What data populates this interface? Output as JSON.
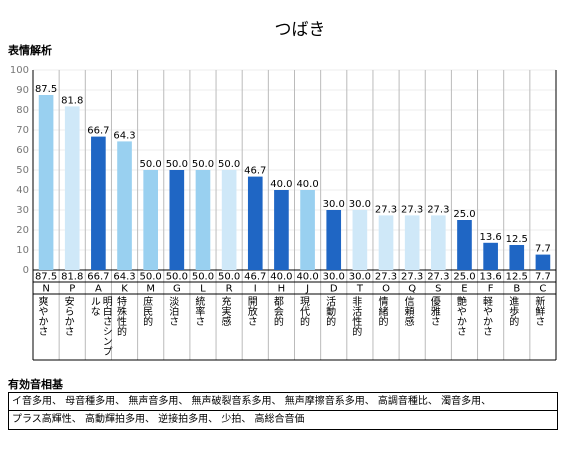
{
  "chart_data": {
    "type": "bar",
    "title": "つばき",
    "subtitle": "表情解析",
    "categories": [
      "N",
      "P",
      "A",
      "K",
      "M",
      "G",
      "L",
      "R",
      "I",
      "H",
      "J",
      "D",
      "T",
      "O",
      "Q",
      "S",
      "E",
      "F",
      "B",
      "C"
    ],
    "descriptions": [
      "爽やかさ",
      "安らかさ",
      "明白さシンプルな",
      "特殊性的",
      "庶民的",
      "淡泊さ",
      "統率さ",
      "充実感",
      "開放さ",
      "都会的",
      "現代的",
      "活動的",
      "非活性的",
      "情緒的",
      "信頼感",
      "優雅さ",
      "艶やかさ",
      "軽やかさ",
      "進歩的",
      "新鮮さ"
    ],
    "values": [
      87.5,
      81.8,
      66.7,
      64.3,
      50,
      50,
      50,
      50,
      46.7,
      40,
      40,
      30,
      30,
      27.3,
      27.3,
      27.3,
      25,
      13.6,
      12.5,
      7.7
    ],
    "value_labels": [
      "87.5",
      "81.8",
      "66.7",
      "64.3",
      "50.0",
      "50.0",
      "50.0",
      "50.0",
      "46.7",
      "40.0",
      "40.0",
      "30.0",
      "30.0",
      "27.3",
      "27.3",
      "27.3",
      "25.0",
      "13.6",
      "12.5",
      "7.7"
    ],
    "colors": [
      "#99d0f0",
      "#cfe8f8",
      "#1f66c4",
      "#99d0f0",
      "#99d0f0",
      "#1f66c4",
      "#99d0f0",
      "#cfe8f8",
      "#1f66c4",
      "#1f66c4",
      "#99d0f0",
      "#1f66c4",
      "#cfe8f8",
      "#cfe8f8",
      "#cfe8f8",
      "#cfe8f8",
      "#1f66c4",
      "#1f66c4",
      "#1f66c4",
      "#1f66c4"
    ],
    "ylim": [
      0,
      100
    ],
    "yticks": [
      0,
      10,
      20,
      30,
      40,
      50,
      60,
      70,
      80,
      90,
      100
    ],
    "grid": true
  },
  "section": {
    "title": "有効音相基",
    "lines": [
      "イ音多用、 母音種多用、 無声音多用、 無声破裂音系多用、 無声摩擦音系多用、 高調音種比、 濁音多用、",
      "プラス高輝性、 高動輝拍多用、 逆接拍多用、 少拍、 高総合音価"
    ]
  }
}
